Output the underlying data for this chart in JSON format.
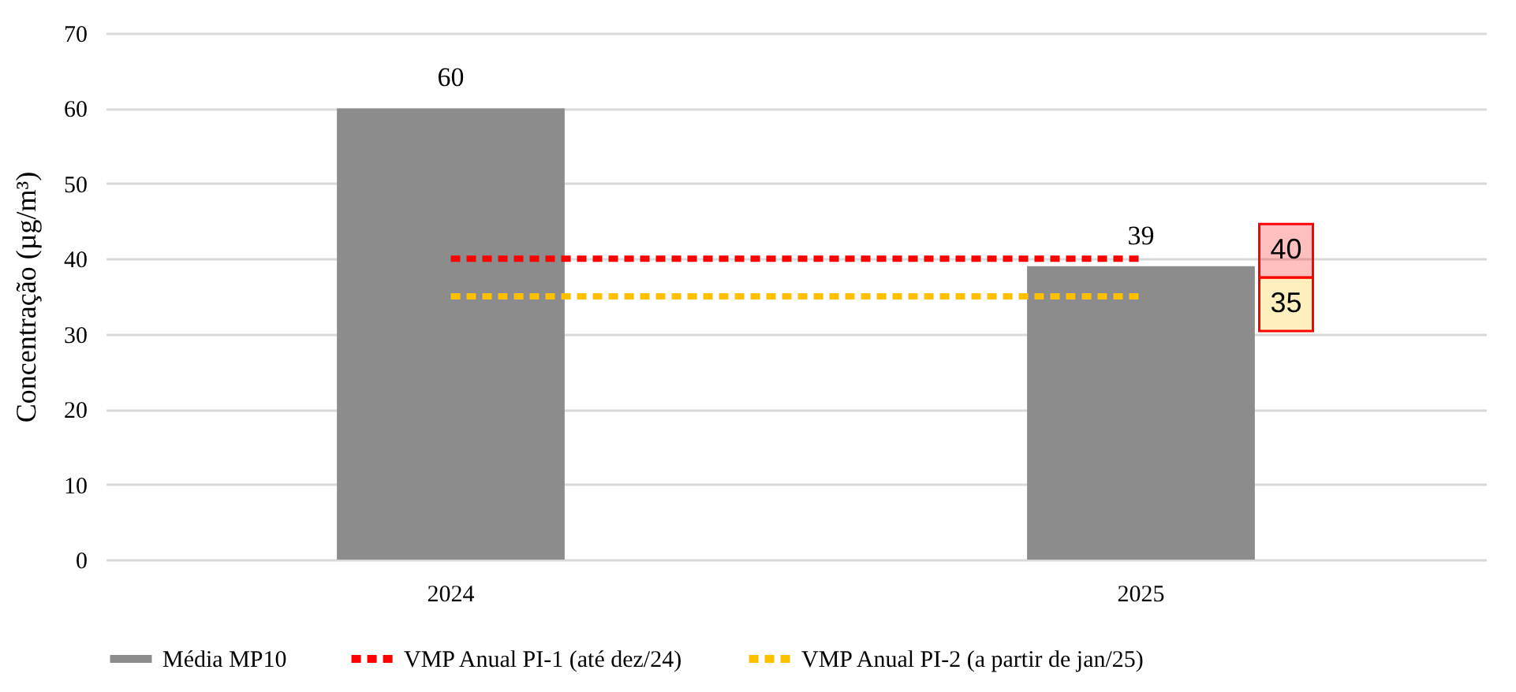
{
  "chart_data": {
    "type": "bar",
    "ylabel": "Concentração (µg/m³)",
    "categories": [
      "2024",
      "2025"
    ],
    "series": [
      {
        "name": "Média MP10",
        "color": "#8c8c8c",
        "values": [
          60,
          39
        ],
        "value_labels": [
          "60",
          "39"
        ]
      },
      {
        "name": "VMP Anual PI-1 (até dez/24)",
        "type": "line",
        "color": "#ff0000",
        "line_style": "dashed",
        "values": [
          40,
          40
        ]
      },
      {
        "name": "VMP Anual PI-2 (a partir de jan/25)",
        "type": "line",
        "color": "#ffc000",
        "line_style": "dashed",
        "values": [
          35,
          35
        ]
      }
    ],
    "annotations": [
      "40",
      "35"
    ],
    "ylim": [
      0,
      70
    ],
    "yticks": [
      0,
      10,
      20,
      30,
      40,
      50,
      60,
      70
    ],
    "grid": "y",
    "legend": "bottom"
  }
}
